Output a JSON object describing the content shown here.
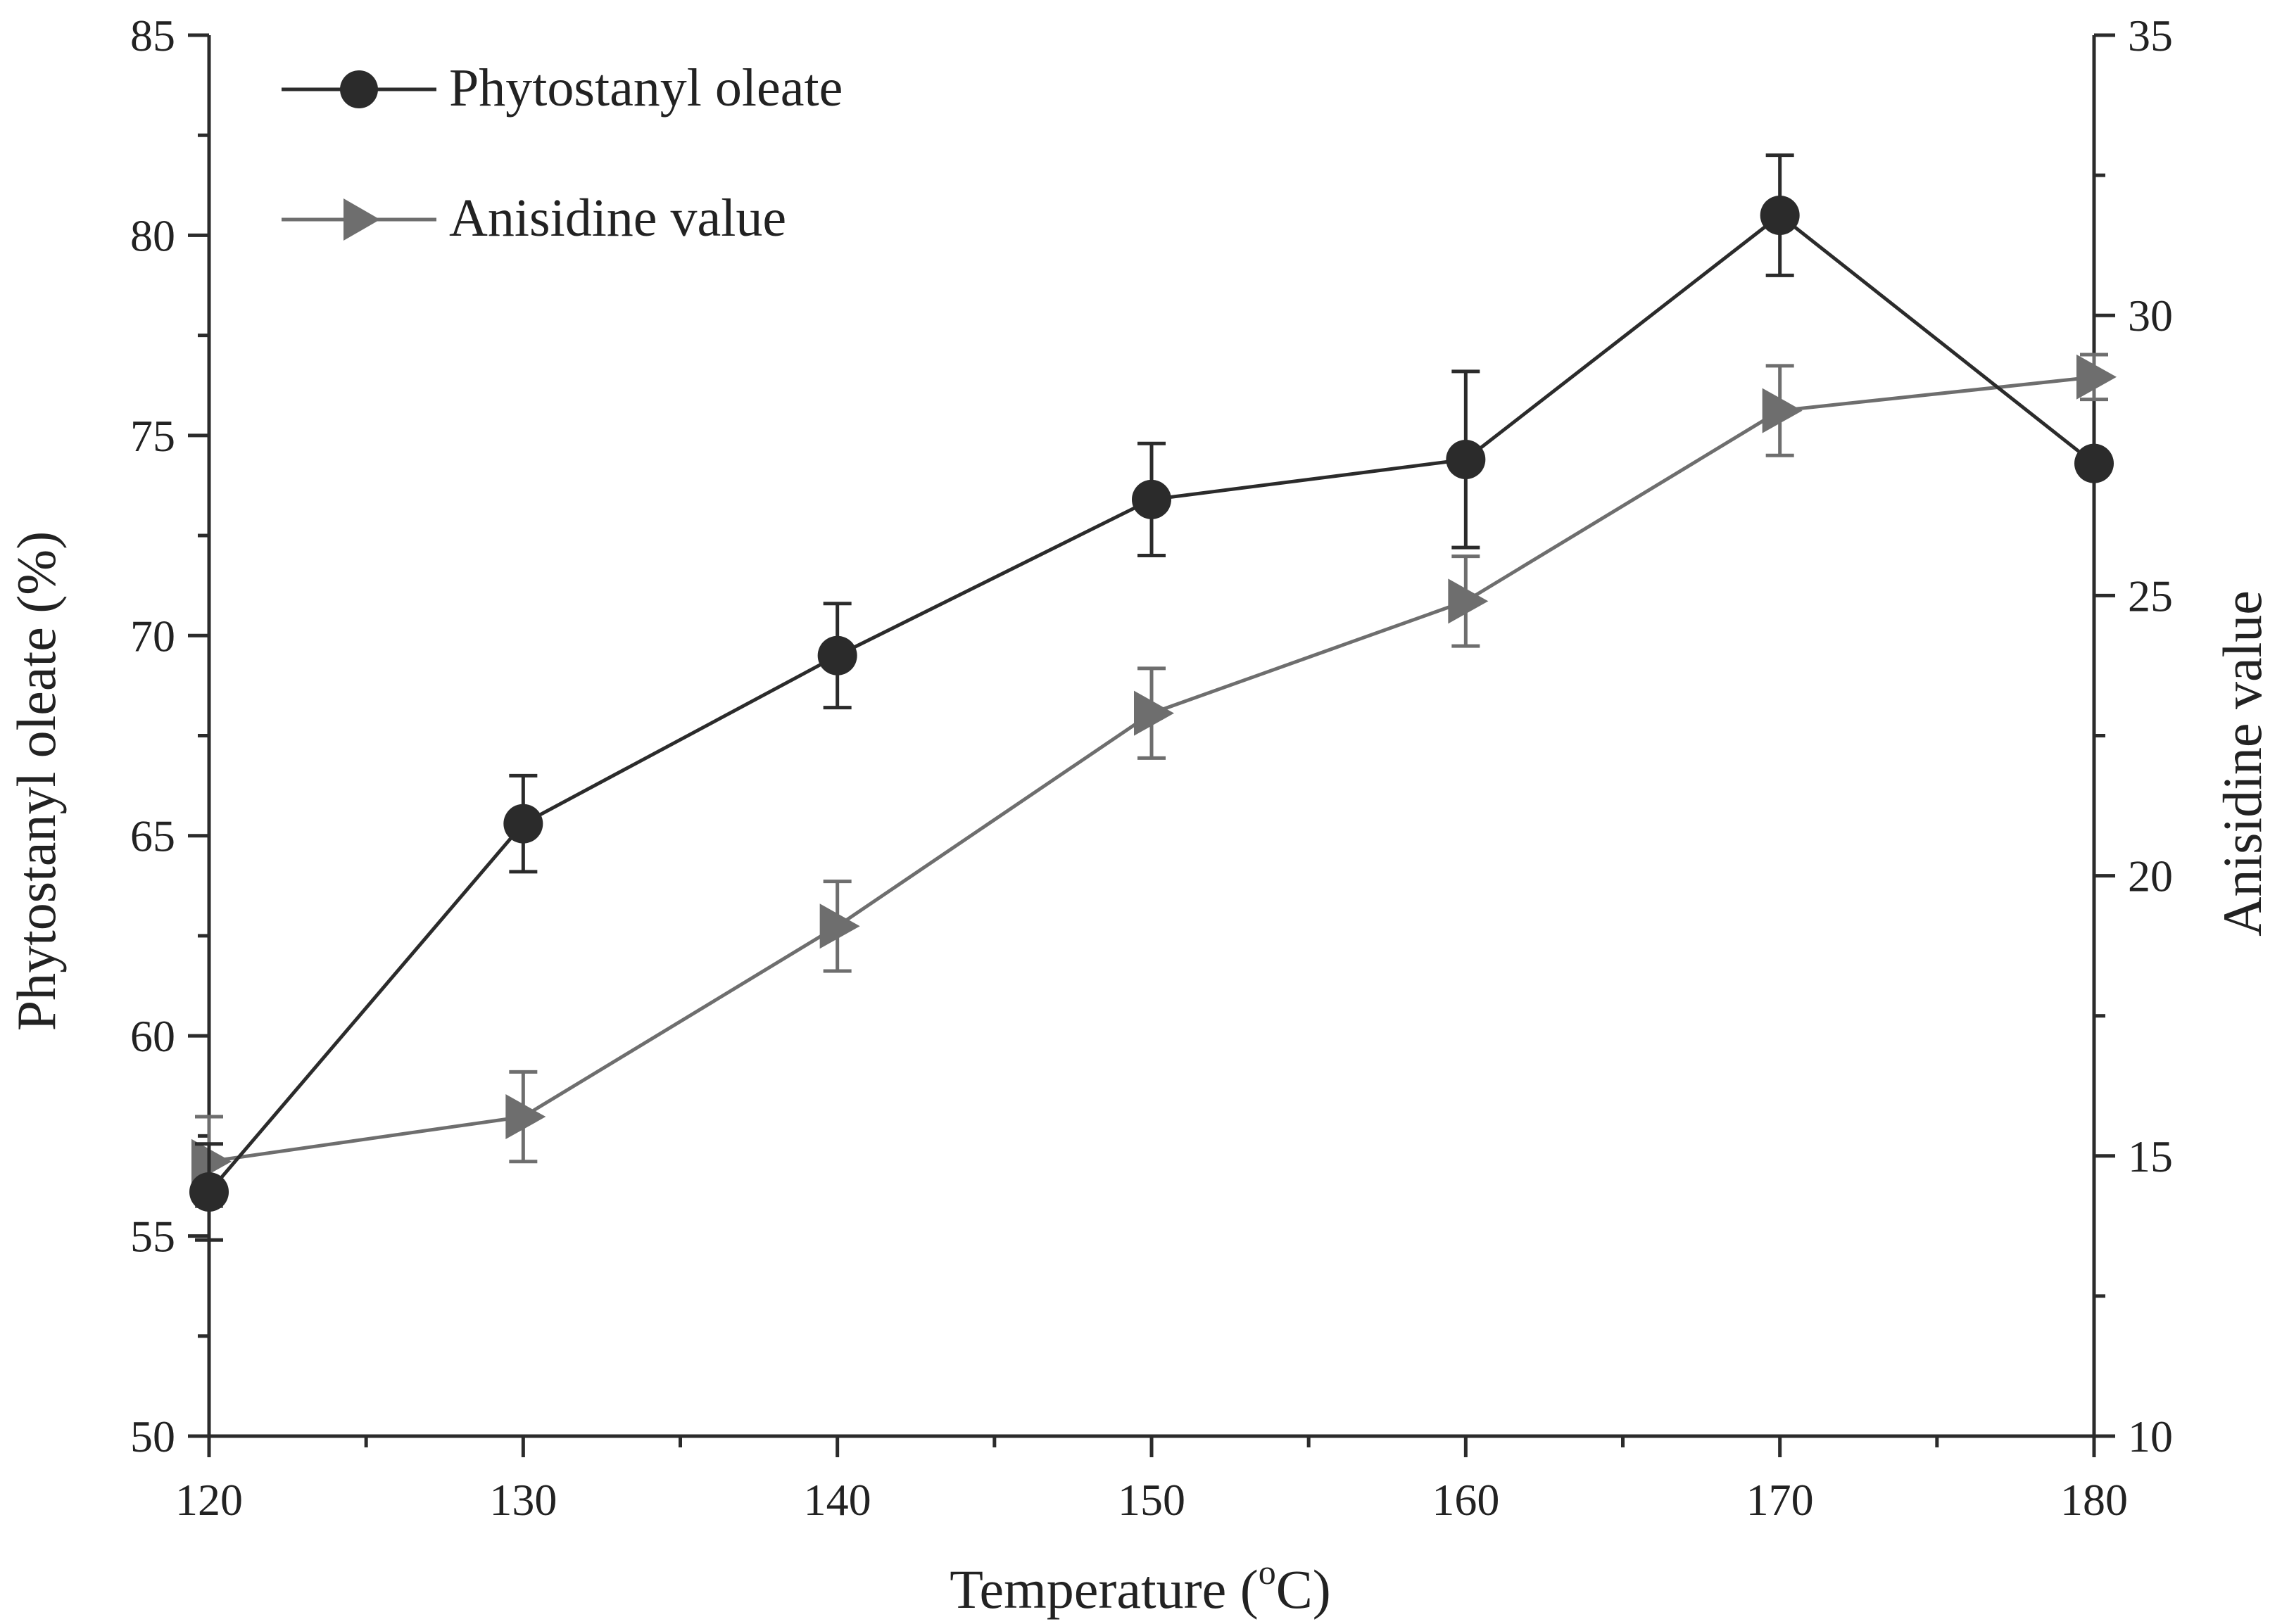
{
  "chart_data": {
    "type": "line",
    "x": [
      120,
      130,
      140,
      150,
      160,
      170,
      180
    ],
    "xlabel": {
      "main": "Temperature (",
      "sup": "o",
      "tail": "C)"
    },
    "xlim": [
      120,
      180
    ],
    "xticks": [
      120,
      130,
      140,
      150,
      160,
      170,
      180
    ],
    "y_left": {
      "label": "Phytostanyl oleate (%)",
      "lim": [
        50,
        85
      ],
      "ticks": [
        50,
        55,
        60,
        65,
        70,
        75,
        80,
        85
      ]
    },
    "y_right": {
      "label": "Anisidine value",
      "lim": [
        10,
        35
      ],
      "ticks": [
        10,
        15,
        20,
        25,
        30,
        35
      ]
    },
    "grid": false,
    "legend_position": "top-left",
    "series": [
      {
        "name": "Phytostanyl oleate",
        "axis": "left",
        "marker": "circle",
        "color": "#2b2b2b",
        "values": [
          56.1,
          65.3,
          69.5,
          73.4,
          74.4,
          80.5,
          74.3
        ],
        "errors": [
          1.2,
          1.2,
          1.3,
          1.4,
          2.2,
          1.5,
          0
        ]
      },
      {
        "name": "Anisidine value",
        "axis": "right",
        "marker": "triangle-right",
        "color": "#6e6e6e",
        "values": [
          14.9,
          15.7,
          19.1,
          22.9,
          24.9,
          28.3,
          28.9
        ],
        "errors": [
          0.8,
          0.8,
          0.8,
          0.8,
          0.8,
          0.8,
          0.4
        ]
      }
    ]
  }
}
